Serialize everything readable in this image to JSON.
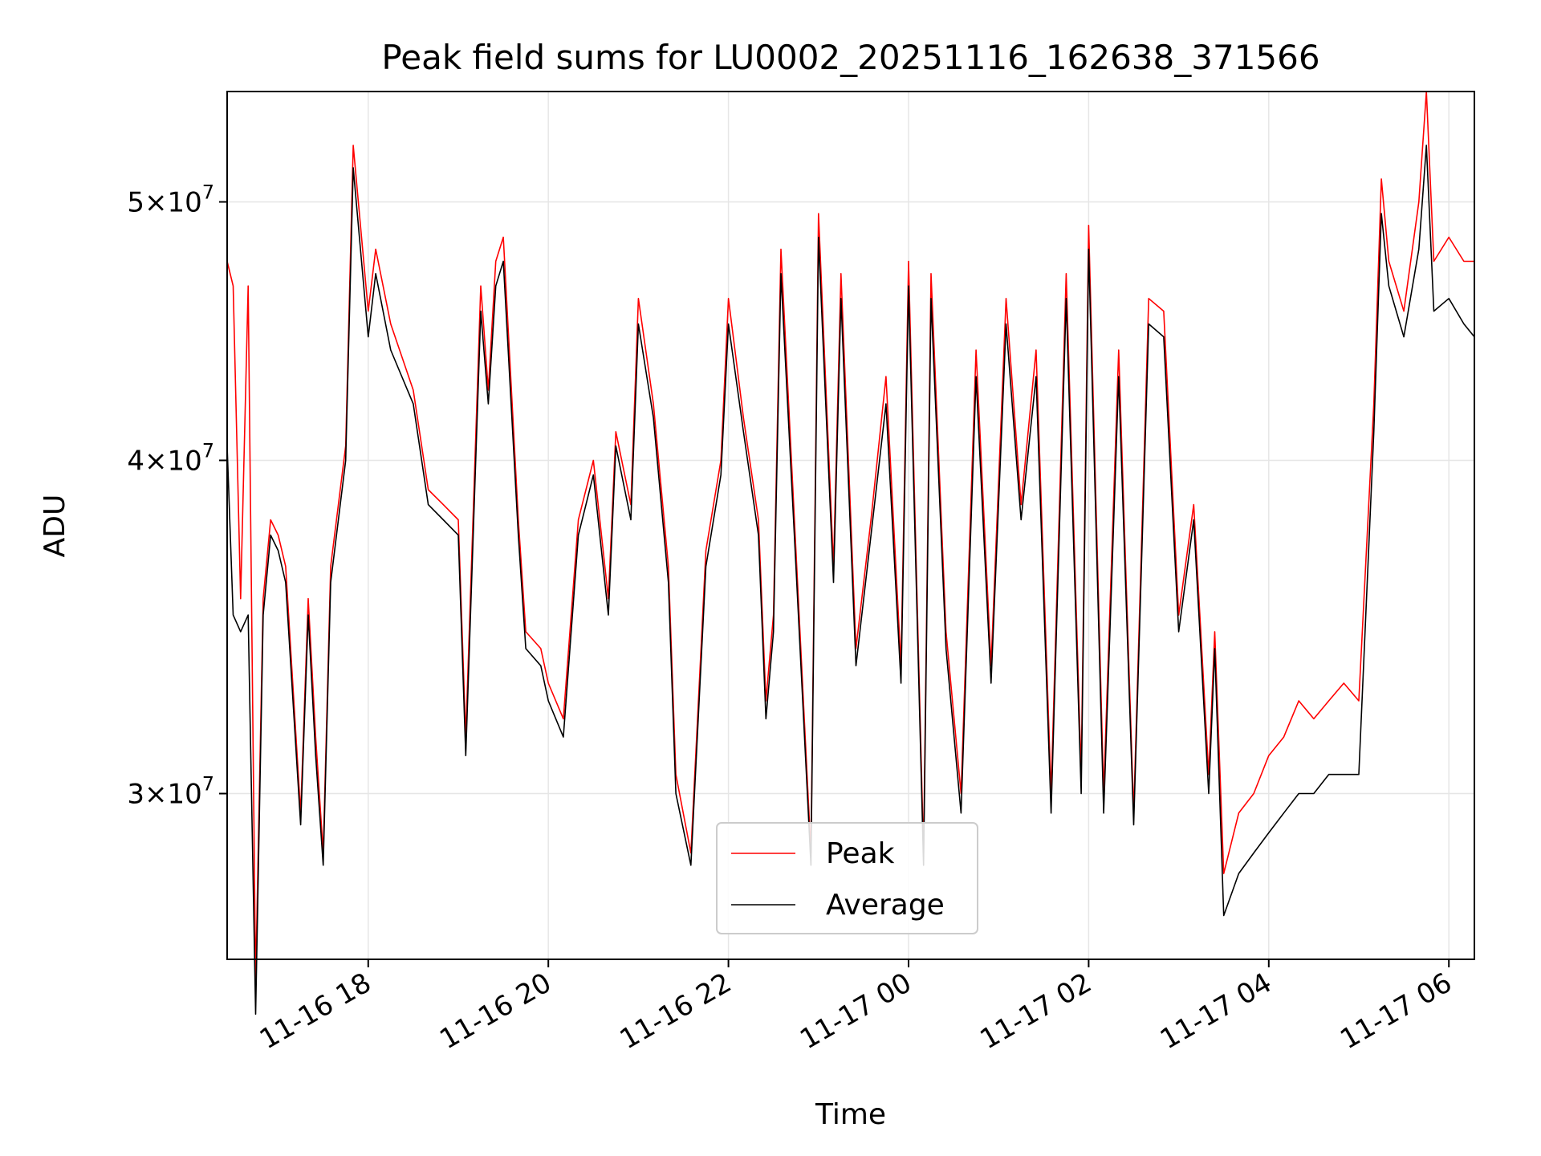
{
  "chart_data": {
    "type": "line",
    "title": "Peak field sums for LU0002_20251116_162638_371566",
    "xlabel": "Time",
    "ylabel": "ADU",
    "yscale": "log",
    "xlim": [
      "2025-11-16 16:26",
      "2025-11-17 06:17"
    ],
    "ylim": [
      26000000,
      55000000
    ],
    "x_ticks": [
      "11-16 18",
      "11-16 20",
      "11-16 22",
      "11-17 00",
      "11-17 02",
      "11-17 04",
      "11-17 06"
    ],
    "y_ticks": [
      {
        "value": 30000000,
        "mantissa": "3",
        "exponent": "7"
      },
      {
        "value": 40000000,
        "mantissa": "4",
        "exponent": "7"
      },
      {
        "value": 50000000,
        "mantissa": "5",
        "exponent": "7"
      }
    ],
    "grid": true,
    "legend_position": "lower-center",
    "colors": {
      "Peak": "#ff0000",
      "Average": "#000000"
    },
    "x": [
      "2025-11-16 16:26",
      "2025-11-16 16:30",
      "2025-11-16 16:35",
      "2025-11-16 16:40",
      "2025-11-16 16:45",
      "2025-11-16 16:50",
      "2025-11-16 16:55",
      "2025-11-16 17:00",
      "2025-11-16 17:05",
      "2025-11-16 17:15",
      "2025-11-16 17:20",
      "2025-11-16 17:25",
      "2025-11-16 17:30",
      "2025-11-16 17:35",
      "2025-11-16 17:45",
      "2025-11-16 17:50",
      "2025-11-16 18:00",
      "2025-11-16 18:05",
      "2025-11-16 18:15",
      "2025-11-16 18:30",
      "2025-11-16 18:40",
      "2025-11-16 18:50",
      "2025-11-16 19:00",
      "2025-11-16 19:05",
      "2025-11-16 19:15",
      "2025-11-16 19:20",
      "2025-11-16 19:25",
      "2025-11-16 19:30",
      "2025-11-16 19:40",
      "2025-11-16 19:45",
      "2025-11-16 19:55",
      "2025-11-16 20:00",
      "2025-11-16 20:10",
      "2025-11-16 20:20",
      "2025-11-16 20:30",
      "2025-11-16 20:40",
      "2025-11-16 20:45",
      "2025-11-16 20:55",
      "2025-11-16 21:00",
      "2025-11-16 21:10",
      "2025-11-16 21:20",
      "2025-11-16 21:25",
      "2025-11-16 21:35",
      "2025-11-16 21:45",
      "2025-11-16 21:55",
      "2025-11-16 22:00",
      "2025-11-16 22:10",
      "2025-11-16 22:20",
      "2025-11-16 22:25",
      "2025-11-16 22:30",
      "2025-11-16 22:35",
      "2025-11-16 22:45",
      "2025-11-16 22:55",
      "2025-11-16 23:00",
      "2025-11-16 23:10",
      "2025-11-16 23:15",
      "2025-11-16 23:25",
      "2025-11-16 23:35",
      "2025-11-16 23:45",
      "2025-11-16 23:55",
      "2025-11-17 00:00",
      "2025-11-17 00:10",
      "2025-11-17 00:15",
      "2025-11-17 00:25",
      "2025-11-17 00:35",
      "2025-11-17 00:45",
      "2025-11-17 00:55",
      "2025-11-17 01:05",
      "2025-11-17 01:15",
      "2025-11-17 01:25",
      "2025-11-17 01:35",
      "2025-11-17 01:45",
      "2025-11-17 01:55",
      "2025-11-17 02:00",
      "2025-11-17 02:10",
      "2025-11-17 02:20",
      "2025-11-17 02:30",
      "2025-11-17 02:40",
      "2025-11-17 02:50",
      "2025-11-17 03:00",
      "2025-11-17 03:10",
      "2025-11-17 03:20",
      "2025-11-17 03:24",
      "2025-11-17 03:30",
      "2025-11-17 03:40",
      "2025-11-17 03:50",
      "2025-11-17 04:00",
      "2025-11-17 04:10",
      "2025-11-17 04:20",
      "2025-11-17 04:30",
      "2025-11-17 04:40",
      "2025-11-17 04:50",
      "2025-11-17 05:00",
      "2025-11-17 05:10",
      "2025-11-17 05:15",
      "2025-11-17 05:20",
      "2025-11-17 05:30",
      "2025-11-17 05:40",
      "2025-11-17 05:45",
      "2025-11-17 05:50",
      "2025-11-17 06:00",
      "2025-11-17 06:10",
      "2025-11-17 06:17"
    ],
    "series": [
      {
        "name": "Peak",
        "values": [
          47500000,
          46500000,
          35500000,
          46500000,
          25500000,
          35500000,
          38000000,
          37500000,
          36500000,
          29500000,
          35500000,
          31500000,
          28500000,
          36500000,
          40500000,
          52500000,
          45500000,
          48000000,
          45000000,
          42500000,
          39000000,
          38500000,
          38000000,
          31500000,
          46500000,
          42500000,
          47500000,
          48500000,
          38000000,
          34500000,
          34000000,
          33000000,
          32000000,
          38000000,
          40000000,
          35500000,
          41000000,
          38500000,
          46000000,
          42000000,
          36500000,
          30500000,
          28500000,
          37000000,
          40000000,
          46000000,
          41500000,
          38000000,
          32500000,
          35000000,
          48000000,
          37000000,
          28500000,
          49500000,
          36500000,
          47000000,
          34000000,
          38000000,
          43000000,
          33500000,
          47500000,
          28500000,
          47000000,
          34500000,
          30000000,
          44000000,
          33500000,
          46000000,
          38500000,
          44000000,
          30000000,
          47000000,
          30500000,
          49000000,
          30000000,
          44000000,
          29500000,
          46000000,
          45500000,
          35000000,
          38500000,
          30500000,
          34500000,
          28000000,
          29500000,
          30000000,
          31000000,
          31500000,
          32500000,
          32000000,
          32500000,
          33000000,
          32500000,
          42000000,
          51000000,
          47500000,
          45500000,
          50000000,
          55000000,
          47500000,
          48500000,
          47500000,
          47500000
        ]
      },
      {
        "name": "Average",
        "values": [
          40500000,
          35000000,
          34500000,
          35000000,
          24800000,
          35000000,
          37500000,
          37000000,
          36000000,
          29200000,
          35000000,
          31000000,
          28200000,
          36000000,
          40000000,
          51500000,
          44500000,
          47000000,
          44000000,
          42000000,
          38500000,
          38000000,
          37500000,
          31000000,
          45500000,
          42000000,
          46500000,
          47500000,
          37500000,
          34000000,
          33500000,
          32500000,
          31500000,
          37500000,
          39500000,
          35000000,
          40500000,
          38000000,
          45000000,
          41500000,
          36000000,
          30000000,
          28200000,
          36500000,
          39500000,
          45000000,
          41000000,
          37500000,
          32000000,
          34500000,
          47000000,
          36500000,
          28200000,
          48500000,
          36000000,
          46000000,
          33500000,
          37500000,
          42000000,
          33000000,
          46500000,
          28200000,
          46000000,
          34000000,
          29500000,
          43000000,
          33000000,
          45000000,
          38000000,
          43000000,
          29500000,
          46000000,
          30000000,
          48000000,
          29500000,
          43000000,
          29200000,
          45000000,
          44500000,
          34500000,
          38000000,
          30000000,
          34000000,
          27000000,
          28000000,
          28500000,
          29000000,
          29500000,
          30000000,
          30000000,
          30500000,
          30500000,
          30500000,
          41000000,
          49500000,
          46500000,
          44500000,
          48000000,
          52500000,
          45500000,
          46000000,
          45000000,
          44500000
        ]
      }
    ]
  }
}
